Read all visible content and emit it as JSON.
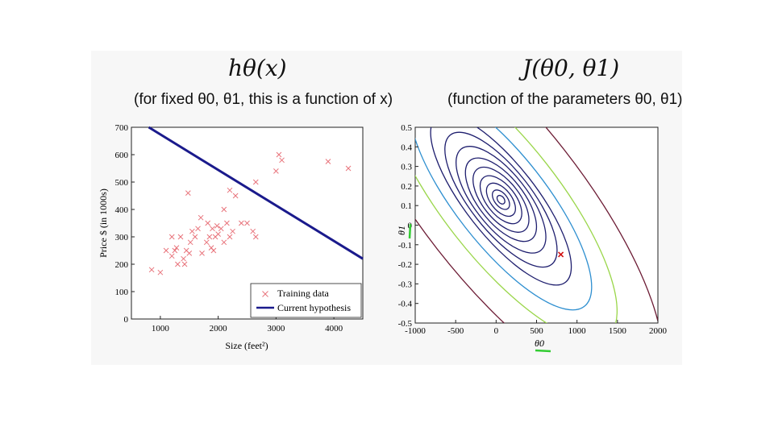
{
  "left": {
    "title": "hθ(x)",
    "subtitle": "(for fixed θ0, θ1, this is a function of x)"
  },
  "right": {
    "title": "J(θ0, θ1)",
    "subtitle": "(function of the parameters θ0, θ1)"
  },
  "colors": {
    "training": "#e8747c",
    "hypothesis": "#1a1a8c",
    "marker": "#d01010",
    "underline": "#33cc33"
  },
  "chart_data": [
    {
      "type": "scatter",
      "xlabel": "Size (feet²)",
      "ylabel": "Price $ (in 1000s)",
      "xlim": [
        500,
        4500
      ],
      "ylim": [
        0,
        700
      ],
      "xticks": [
        "1000",
        "2000",
        "3000",
        "4000"
      ],
      "yticks": [
        "0",
        "100",
        "200",
        "300",
        "400",
        "500",
        "600",
        "700"
      ],
      "legend_position": "bottom-right",
      "series": [
        {
          "name": "Training data",
          "marker": "x",
          "points": [
            [
              850,
              180
            ],
            [
              1000,
              170
            ],
            [
              1100,
              250
            ],
            [
              1200,
              300
            ],
            [
              1200,
              230
            ],
            [
              1250,
              250
            ],
            [
              1300,
              200
            ],
            [
              1280,
              260
            ],
            [
              1350,
              300
            ],
            [
              1400,
              220
            ],
            [
              1420,
              200
            ],
            [
              1450,
              250
            ],
            [
              1480,
              460
            ],
            [
              1500,
              240
            ],
            [
              1520,
              280
            ],
            [
              1550,
              320
            ],
            [
              1600,
              300
            ],
            [
              1650,
              330
            ],
            [
              1700,
              370
            ],
            [
              1720,
              240
            ],
            [
              1800,
              280
            ],
            [
              1820,
              350
            ],
            [
              1850,
              300
            ],
            [
              1880,
              260
            ],
            [
              1900,
              330
            ],
            [
              1920,
              250
            ],
            [
              1950,
              300
            ],
            [
              1980,
              340
            ],
            [
              2000,
              310
            ],
            [
              2050,
              330
            ],
            [
              2100,
              280
            ],
            [
              2100,
              400
            ],
            [
              2150,
              350
            ],
            [
              2200,
              300
            ],
            [
              2200,
              470
            ],
            [
              2250,
              320
            ],
            [
              2300,
              450
            ],
            [
              2400,
              350
            ],
            [
              2500,
              350
            ],
            [
              2600,
              320
            ],
            [
              2650,
              300
            ],
            [
              2650,
              500
            ],
            [
              3000,
              540
            ],
            [
              3050,
              600
            ],
            [
              3100,
              580
            ],
            [
              3900,
              575
            ],
            [
              4250,
              550
            ]
          ]
        },
        {
          "name": "Current hypothesis",
          "type": "line",
          "points": [
            [
              800,
              700
            ],
            [
              4500,
              220
            ]
          ]
        }
      ]
    },
    {
      "type": "contour",
      "xlabel": "θ0",
      "ylabel": "θ1",
      "xlim": [
        -1000,
        2000
      ],
      "ylim": [
        -0.5,
        0.5
      ],
      "xticks": [
        "-1000",
        "-500",
        "0",
        "500",
        "1000",
        "1500",
        "2000"
      ],
      "yticks": [
        "0.5",
        "0.4",
        "0.3",
        "0.2",
        "0.1",
        "0",
        "-0.1",
        "-0.2",
        "-0.3",
        "-0.4",
        "-0.5"
      ],
      "minimum": [
        60,
        0.13
      ],
      "current_point": [
        800,
        -0.15
      ]
    }
  ]
}
